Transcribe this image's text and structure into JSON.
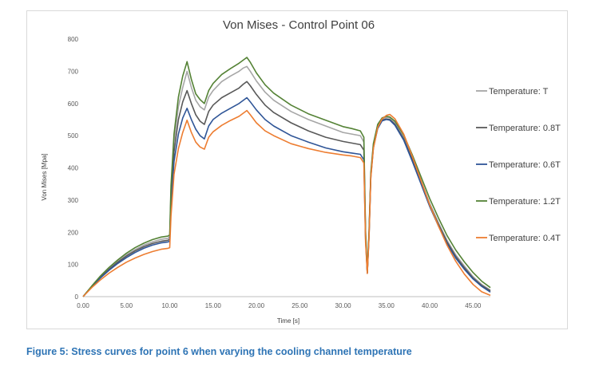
{
  "chart_data": {
    "type": "line",
    "title": "Von Mises - Control Point 06",
    "xlabel": "Time [s]",
    "ylabel": "Von Mises [Mpa]",
    "xlim": [
      0,
      47
    ],
    "ylim": [
      0,
      800
    ],
    "xticks": [
      0,
      5,
      10,
      15,
      20,
      25,
      30,
      35,
      40,
      45
    ],
    "xtick_labels": [
      "0.00",
      "5.00",
      "10.00",
      "15.00",
      "20.00",
      "25.00",
      "30.00",
      "35.00",
      "40.00",
      "45.00"
    ],
    "yticks": [
      0,
      100,
      200,
      300,
      400,
      500,
      600,
      700,
      800
    ],
    "ytick_labels": [
      "0",
      "100",
      "200",
      "300",
      "400",
      "500",
      "600",
      "700",
      "800"
    ],
    "grid": false,
    "legend_position": "right",
    "x": [
      0,
      1,
      2,
      3,
      4,
      5,
      6,
      7,
      8,
      9,
      9.8,
      10.0,
      10.15,
      10.5,
      11,
      11.5,
      12.0,
      12.5,
      13,
      13.5,
      14.0,
      14.5,
      15,
      16,
      17,
      18,
      18.5,
      18.9,
      19.3,
      20,
      21,
      22,
      24,
      26,
      28,
      30,
      31,
      32.0,
      32.4,
      32.6,
      32.8,
      33.0,
      33.2,
      33.5,
      34,
      34.5,
      35,
      35.4,
      36,
      37,
      38,
      39,
      40,
      41,
      42,
      43,
      44,
      45,
      46,
      47
    ],
    "series": [
      {
        "name": "Temperature: T",
        "color": "#a6a6a6",
        "values": [
          0,
          32,
          62,
          88,
          110,
          130,
          146,
          160,
          170,
          178,
          181,
          185,
          330,
          480,
          590,
          650,
          700,
          650,
          610,
          590,
          580,
          620,
          640,
          668,
          685,
          700,
          710,
          715,
          700,
          670,
          635,
          610,
          575,
          550,
          530,
          510,
          505,
          500,
          480,
          200,
          75,
          200,
          380,
          470,
          530,
          552,
          557,
          555,
          540,
          495,
          430,
          360,
          290,
          230,
          175,
          130,
          95,
          62,
          38,
          20
        ]
      },
      {
        "name": "Temperature: 0.8T",
        "color": "#595959",
        "values": [
          0,
          32,
          60,
          85,
          107,
          126,
          142,
          155,
          165,
          172,
          175,
          178,
          310,
          450,
          550,
          605,
          640,
          600,
          565,
          545,
          535,
          575,
          595,
          618,
          633,
          648,
          660,
          668,
          655,
          628,
          595,
          572,
          540,
          515,
          495,
          482,
          477,
          472,
          455,
          190,
          74,
          195,
          375,
          465,
          525,
          548,
          552,
          550,
          535,
          490,
          425,
          355,
          285,
          225,
          170,
          125,
          90,
          58,
          35,
          18
        ]
      },
      {
        "name": "Temperature: 0.6T",
        "color": "#2f5597",
        "values": [
          0,
          31,
          58,
          82,
          103,
          121,
          137,
          150,
          160,
          167,
          170,
          172,
          285,
          420,
          505,
          555,
          585,
          550,
          520,
          500,
          490,
          530,
          550,
          570,
          585,
          600,
          610,
          618,
          605,
          580,
          550,
          530,
          500,
          480,
          462,
          450,
          446,
          442,
          425,
          180,
          73,
          190,
          372,
          462,
          522,
          546,
          550,
          548,
          532,
          486,
          420,
          350,
          280,
          220,
          165,
          120,
          85,
          55,
          32,
          14
        ]
      },
      {
        "name": "Temperature: 1.2T",
        "color": "#548235",
        "values": [
          0,
          33,
          64,
          91,
          114,
          135,
          152,
          166,
          177,
          185,
          188,
          192,
          345,
          505,
          620,
          685,
          730,
          675,
          630,
          612,
          600,
          640,
          662,
          690,
          708,
          725,
          735,
          743,
          728,
          695,
          658,
          632,
          595,
          568,
          548,
          528,
          522,
          515,
          495,
          205,
          76,
          205,
          385,
          475,
          535,
          555,
          560,
          558,
          545,
          502,
          440,
          372,
          305,
          245,
          190,
          145,
          108,
          75,
          48,
          28
        ]
      },
      {
        "name": "Temperature: 0.4T",
        "color": "#ed7d31",
        "values": [
          0,
          28,
          52,
          73,
          91,
          107,
          120,
          131,
          140,
          147,
          150,
          152,
          250,
          380,
          460,
          510,
          548,
          510,
          480,
          465,
          458,
          495,
          512,
          532,
          547,
          560,
          570,
          578,
          565,
          540,
          515,
          500,
          475,
          460,
          448,
          440,
          437,
          432,
          415,
          170,
          72,
          185,
          368,
          460,
          525,
          552,
          563,
          566,
          552,
          505,
          435,
          360,
          285,
          220,
          160,
          110,
          70,
          38,
          15,
          4
        ]
      }
    ]
  },
  "caption": "Figure 5: Stress curves for point 6 when varying the cooling channel temperature"
}
